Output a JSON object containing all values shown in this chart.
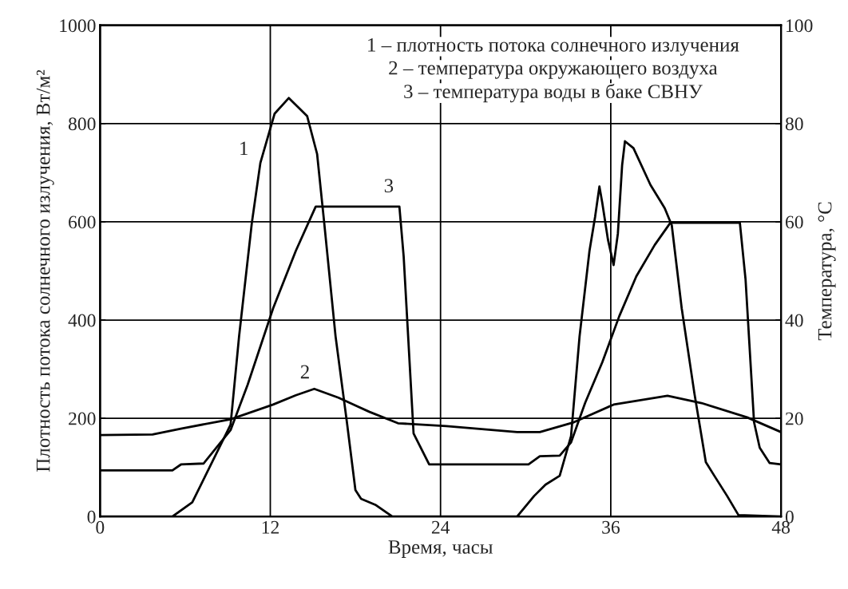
{
  "chart_data": {
    "type": "line",
    "xlabel": "Время, часы",
    "ylabel": "Плотность потока солнечного излучения, Вт/м²",
    "y2label": "Температура, °С",
    "xlim": [
      0,
      48
    ],
    "xticks": [
      0,
      12,
      24,
      36,
      48
    ],
    "ylim": [
      0,
      1000
    ],
    "yticks": [
      0,
      200,
      400,
      600,
      800,
      1000
    ],
    "y2lim": [
      0,
      100
    ],
    "y2ticks": [
      0,
      20,
      40,
      60,
      80,
      100
    ],
    "grid": true,
    "marker": "none",
    "line_style": "solid",
    "series": [
      {
        "color": "#000000",
        "x": [
          0,
          5.1,
          6.5,
          9.2,
          9.8,
          10.7,
          11.3,
          12.3,
          13.3,
          14.6,
          15.3,
          15.8,
          16.6,
          17.4,
          18.0,
          18.4,
          19.4,
          20.6,
          29.4,
          30.6,
          31.4,
          32.4,
          33.2,
          33.8,
          34.5,
          34.9,
          35.2,
          35.4,
          35.8,
          36.2,
          36.5,
          36.8,
          37.0,
          37.6,
          38.8,
          39.8,
          40.3,
          41.0,
          41.9,
          42.7,
          43.3,
          44.2,
          45.0,
          48
        ],
        "values": [
          0,
          0,
          29,
          187,
          367,
          598,
          720,
          820,
          852,
          815,
          738,
          598,
          367,
          192,
          54,
          36,
          24,
          0,
          0,
          42,
          65,
          83,
          164,
          367,
          541,
          611,
          672,
          639,
          564,
          512,
          576,
          715,
          764,
          750,
          675,
          628,
          593,
          424,
          250,
          111,
          83,
          42,
          3,
          0
        ]
      },
      {
        "color": "#000000",
        "axis": "y2",
        "x": [
          0,
          3.7,
          5.7,
          9.2,
          12.2,
          13.8,
          15.1,
          16.8,
          19.0,
          21.0,
          24.4,
          29.4,
          31.0,
          33.4,
          36.2,
          40.0,
          42.4,
          45.6,
          48
        ],
        "values": [
          16.6,
          16.7,
          17.9,
          19.8,
          22.8,
          24.7,
          26.0,
          24.2,
          21.3,
          19.0,
          18.4,
          17.2,
          17.2,
          19.2,
          22.8,
          24.6,
          23.1,
          20.2,
          17.2
        ]
      },
      {
        "color": "#000000",
        "axis": "y2",
        "x": [
          0,
          5.1,
          5.7,
          7.3,
          9.2,
          10.4,
          12.2,
          13.8,
          15.2,
          21.1,
          21.4,
          22.1,
          23.2,
          30.2,
          31.0,
          32.4,
          33.2,
          34.2,
          35.4,
          36.6,
          37.8,
          39.1,
          40.2,
          45.1,
          45.5,
          46.1,
          46.5,
          47.2,
          48
        ],
        "values": [
          9.4,
          9.4,
          10.6,
          10.8,
          17.6,
          26.8,
          42.4,
          54.1,
          63.1,
          63.1,
          53.0,
          16.9,
          10.6,
          10.6,
          12.3,
          12.4,
          15.1,
          23.2,
          31.4,
          40.8,
          48.9,
          55.3,
          59.8,
          59.8,
          48.3,
          19.2,
          14.0,
          10.9,
          10.6
        ]
      }
    ],
    "annotations": [
      "1 – плотность потока солнечного излучения",
      "2 – температура окружающего воздуха",
      "3 – температура воды в баке СВНУ",
      "1",
      "2",
      "3"
    ]
  }
}
